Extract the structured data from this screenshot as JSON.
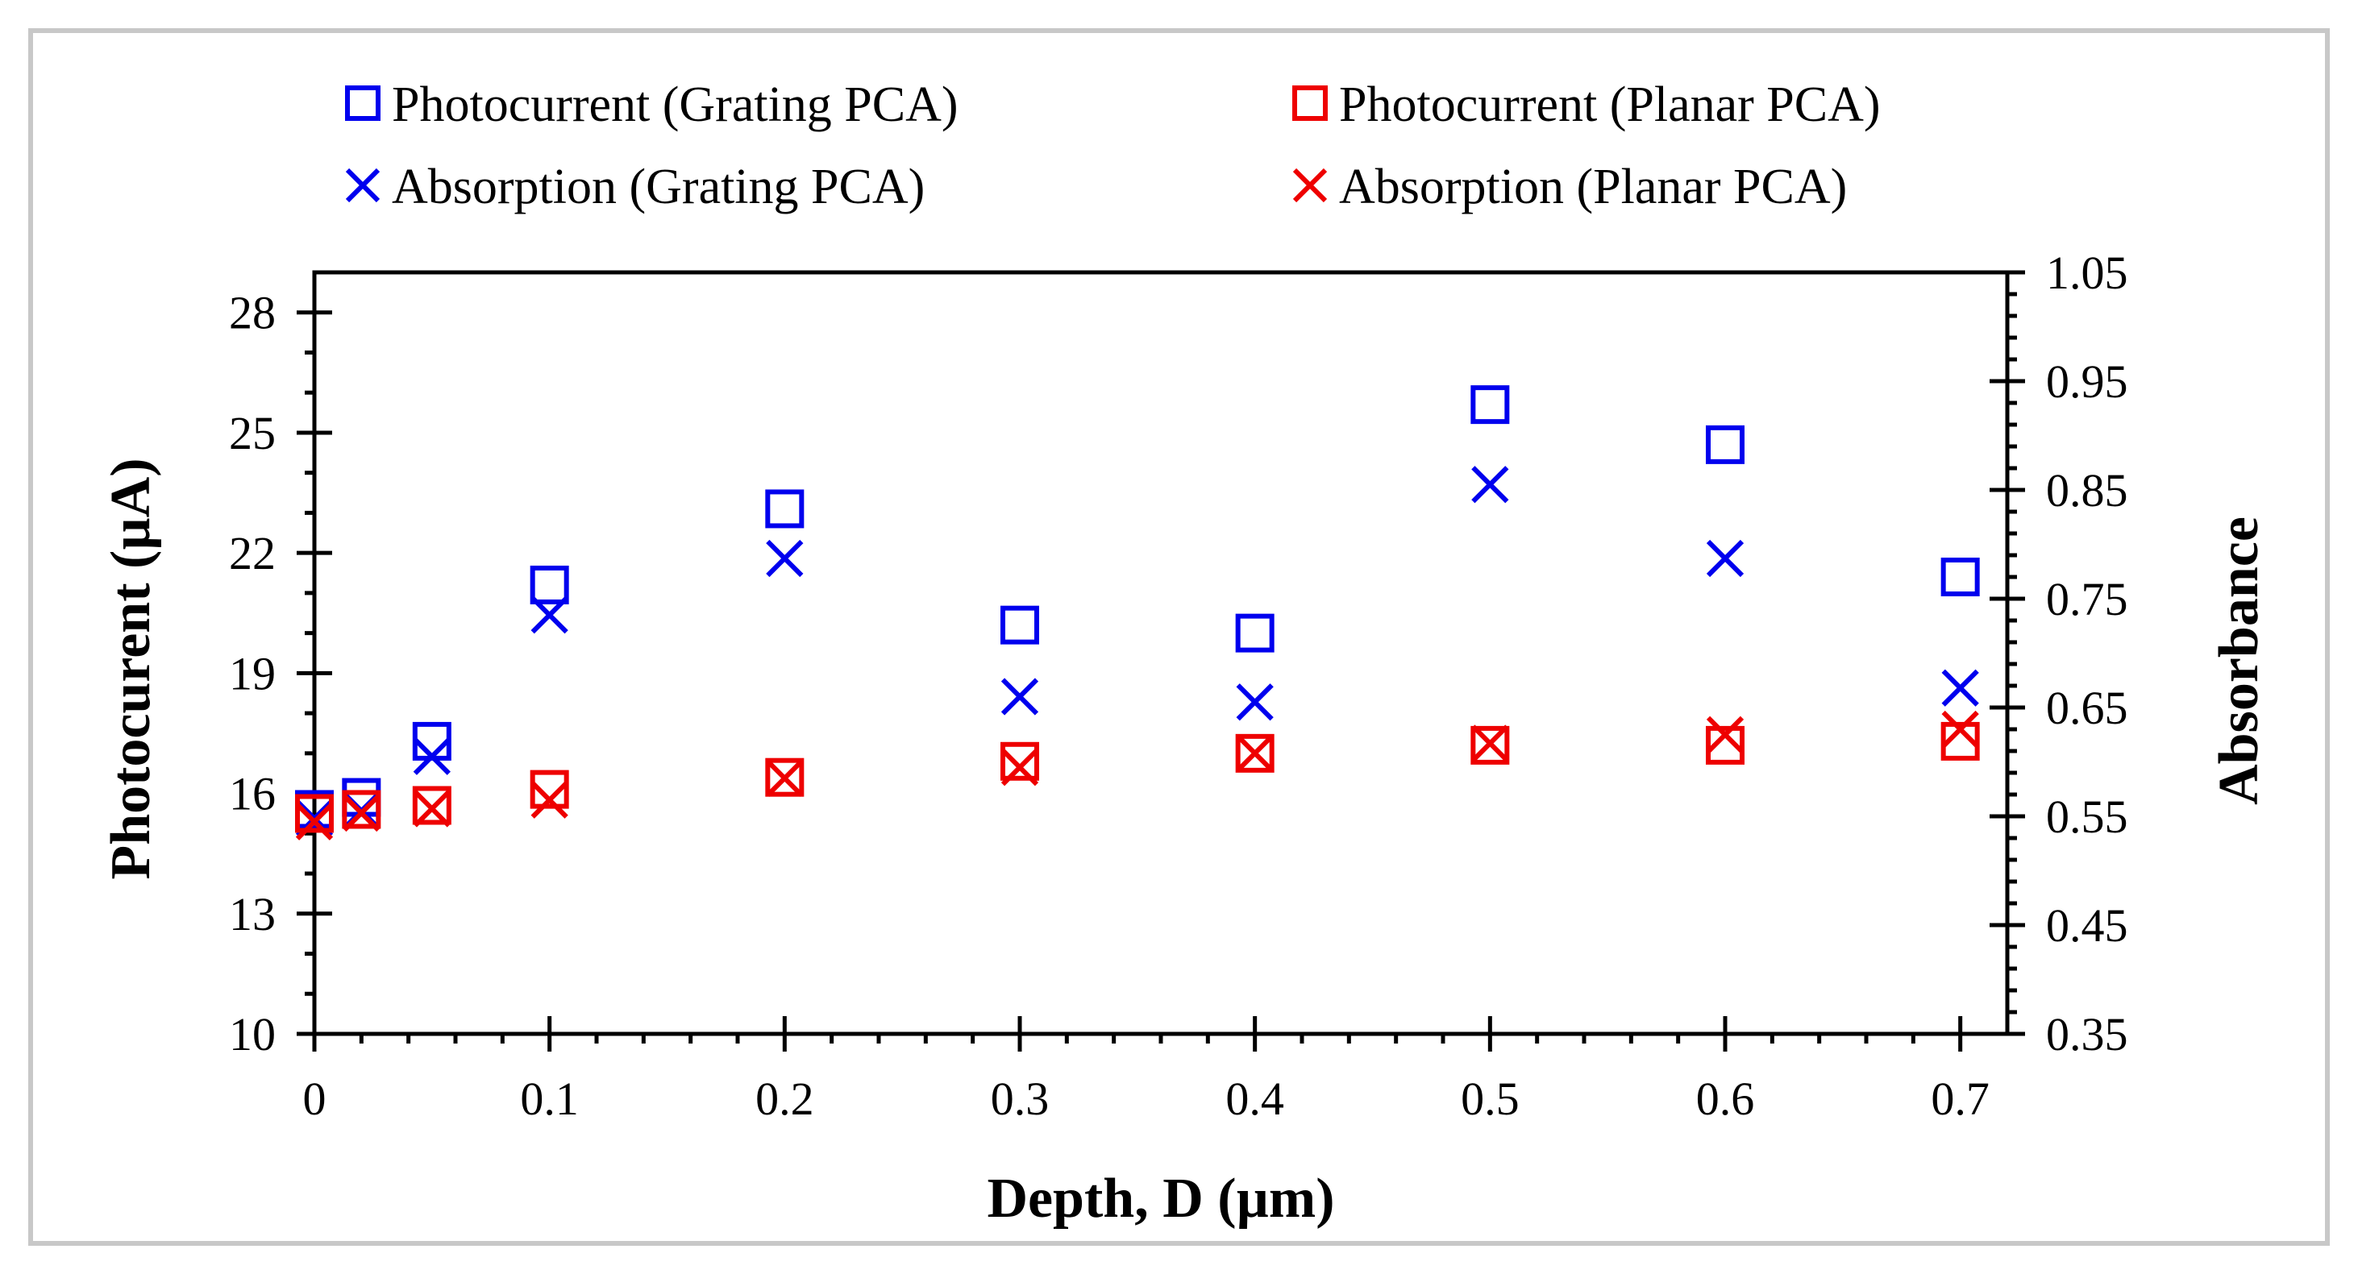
{
  "chart_data": {
    "type": "scatter",
    "xlabel": "Depth, D (µm)",
    "ylabel": "Photocurent (µA)",
    "y2label": "Absorbance",
    "xlim": [
      0,
      0.72
    ],
    "ylim": [
      10,
      29
    ],
    "y2lim": [
      0.35,
      1.05
    ],
    "xticks": [
      0,
      0.1,
      0.2,
      0.3,
      0.4,
      0.5,
      0.6,
      0.7
    ],
    "xtick_labels": [
      "0",
      "0.1",
      "0.2",
      "0.3",
      "0.4",
      "0.5",
      "0.6",
      "0.7"
    ],
    "yticks": [
      10,
      13,
      16,
      19,
      22,
      25,
      28
    ],
    "ytick_labels": [
      "10",
      "13",
      "16",
      "19",
      "22",
      "25",
      "28"
    ],
    "y2ticks": [
      0.35,
      0.45,
      0.55,
      0.65,
      0.75,
      0.85,
      0.95,
      1.05
    ],
    "y2tick_labels": [
      "0.35",
      "0.45",
      "0.55",
      "0.65",
      "0.75",
      "0.85",
      "0.95",
      "1.05"
    ],
    "grid": false,
    "legend_position": "top",
    "series": [
      {
        "name": "Photocurrent (Grating PCA)",
        "marker": "square",
        "color": "#0000ee",
        "axis": "left",
        "x": [
          0,
          0.02,
          0.05,
          0.1,
          0.2,
          0.3,
          0.4,
          0.5,
          0.6,
          0.7
        ],
        "y": [
          15.6,
          15.9,
          17.3,
          21.2,
          23.1,
          20.2,
          20.0,
          25.7,
          24.7,
          21.4
        ]
      },
      {
        "name": "Absorption (Grating PCA)",
        "marker": "x",
        "color": "#0000ee",
        "axis": "right",
        "x": [
          0,
          0.02,
          0.05,
          0.1,
          0.2,
          0.3,
          0.4,
          0.5,
          0.6,
          0.7
        ],
        "y": [
          0.548,
          0.555,
          0.605,
          0.735,
          0.787,
          0.66,
          0.655,
          0.855,
          0.787,
          0.668
        ]
      },
      {
        "name": "Photocurrent (Planar PCA)",
        "marker": "square",
        "color": "#ee0000",
        "axis": "left",
        "x": [
          0,
          0.02,
          0.05,
          0.1,
          0.2,
          0.3,
          0.4,
          0.5,
          0.6,
          0.7
        ],
        "y": [
          15.5,
          15.6,
          15.7,
          16.1,
          16.4,
          16.8,
          17.0,
          17.2,
          17.2,
          17.3
        ]
      },
      {
        "name": "Absorption (Planar PCA)",
        "marker": "x",
        "color": "#ee0000",
        "axis": "right",
        "x": [
          0,
          0.02,
          0.05,
          0.1,
          0.2,
          0.3,
          0.4,
          0.5,
          0.6,
          0.7
        ],
        "y": [
          0.545,
          0.553,
          0.557,
          0.565,
          0.585,
          0.595,
          0.608,
          0.617,
          0.625,
          0.63
        ]
      }
    ]
  }
}
